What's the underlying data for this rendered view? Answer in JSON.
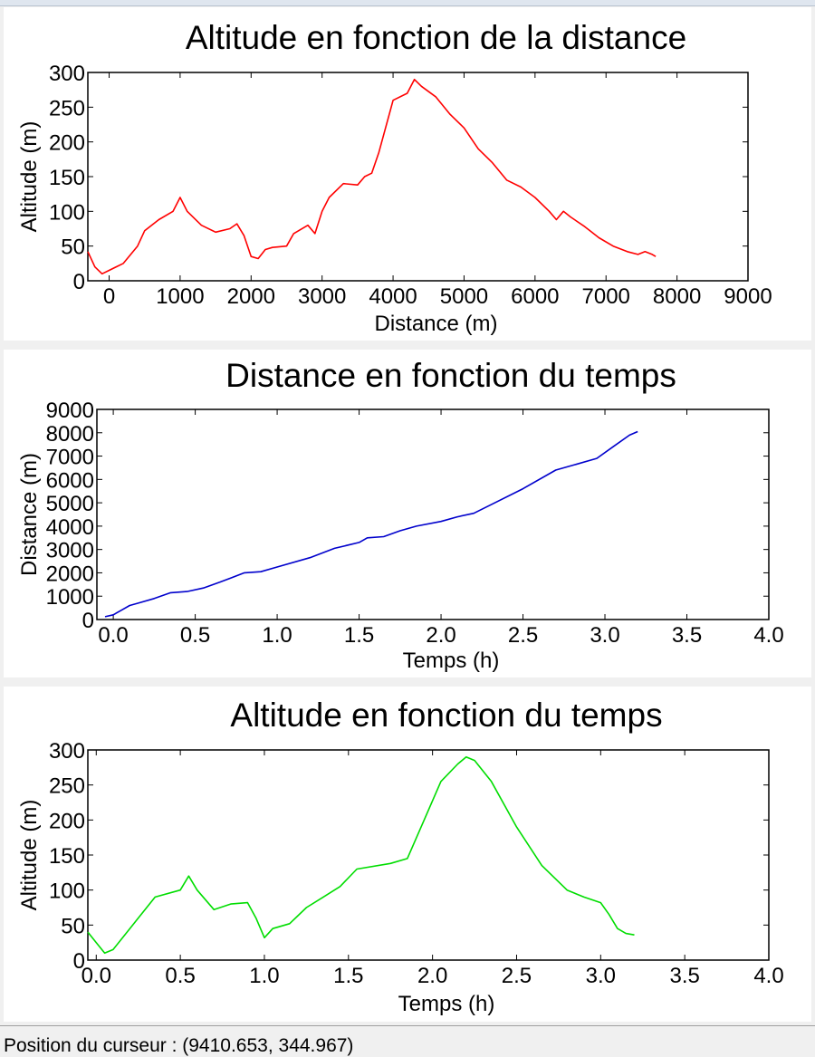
{
  "status_bar": {
    "cursor_text": "Position du curseur : (9410.653, 344.967)"
  },
  "chart_data": [
    {
      "type": "line",
      "title": "Altitude en fonction de la distance",
      "xlabel": "Distance (m)",
      "ylabel": "Altitude (m)",
      "xlim": [
        -300,
        9000
      ],
      "ylim": [
        0,
        300
      ],
      "xticks": [
        "0",
        "1000",
        "2000",
        "3000",
        "4000",
        "5000",
        "6000",
        "7000",
        "8000",
        "9000"
      ],
      "yticks": [
        "0",
        "50",
        "100",
        "150",
        "200",
        "250",
        "300"
      ],
      "color": "#ff0000",
      "series": [
        {
          "x": [
            -300,
            -200,
            -100,
            0,
            200,
            400,
            500,
            700,
            900,
            1000,
            1100,
            1300,
            1500,
            1700,
            1800,
            1900,
            2000,
            2100,
            2200,
            2300,
            2500,
            2600,
            2800,
            2900,
            3000,
            3100,
            3300,
            3500,
            3600,
            3700,
            3800,
            4000,
            4200,
            4300,
            4400,
            4600,
            4800,
            5000,
            5200,
            5400,
            5600,
            5800,
            6000,
            6200,
            6300,
            6400,
            6500,
            6700,
            6900,
            7100,
            7300,
            7450,
            7550,
            7650,
            7700
          ],
          "y": [
            42,
            20,
            10,
            15,
            25,
            50,
            72,
            88,
            100,
            120,
            100,
            80,
            70,
            75,
            82,
            65,
            35,
            32,
            45,
            48,
            50,
            68,
            80,
            68,
            100,
            120,
            140,
            138,
            150,
            155,
            185,
            260,
            270,
            290,
            280,
            265,
            240,
            220,
            190,
            170,
            145,
            135,
            120,
            100,
            88,
            100,
            92,
            78,
            62,
            50,
            42,
            38,
            42,
            38,
            35
          ]
        }
      ]
    },
    {
      "type": "line",
      "title": "Distance en fonction du temps",
      "xlabel": "Temps (h)",
      "ylabel": "Distance (m)",
      "xlim": [
        -0.1,
        4.0
      ],
      "ylim": [
        0,
        9000
      ],
      "xticks": [
        "0.0",
        "0.5",
        "1.0",
        "1.5",
        "2.0",
        "2.5",
        "3.0",
        "3.5",
        "4.0"
      ],
      "yticks": [
        "0",
        "1000",
        "2000",
        "3000",
        "4000",
        "5000",
        "6000",
        "7000",
        "8000",
        "9000"
      ],
      "color": "#0000cc",
      "series": [
        {
          "x": [
            -0.05,
            0.0,
            0.05,
            0.1,
            0.15,
            0.25,
            0.35,
            0.45,
            0.55,
            0.65,
            0.8,
            0.9,
            1.0,
            1.2,
            1.35,
            1.5,
            1.55,
            1.65,
            1.75,
            1.85,
            2.0,
            2.1,
            2.2,
            2.3,
            2.5,
            2.7,
            2.8,
            2.95,
            3.05,
            3.15,
            3.2
          ],
          "y": [
            120,
            200,
            400,
            600,
            700,
            900,
            1150,
            1200,
            1350,
            1600,
            2000,
            2050,
            2250,
            2650,
            3050,
            3300,
            3500,
            3550,
            3800,
            4000,
            4200,
            4400,
            4550,
            4900,
            5600,
            6400,
            6600,
            6900,
            7400,
            7900,
            8050
          ]
        }
      ]
    },
    {
      "type": "line",
      "title": "Altitude en fonction du temps",
      "xlabel": "Temps (h)",
      "ylabel": "Altitude (m)",
      "xlim": [
        -0.05,
        4.0
      ],
      "ylim": [
        0,
        300
      ],
      "xticks": [
        "0.0",
        "0.5",
        "1.0",
        "1.5",
        "2.0",
        "2.5",
        "3.0",
        "3.5",
        "4.0"
      ],
      "yticks": [
        "0",
        "50",
        "100",
        "150",
        "200",
        "250",
        "300"
      ],
      "color": "#00dd00",
      "series": [
        {
          "x": [
            -0.05,
            0.0,
            0.05,
            0.1,
            0.2,
            0.35,
            0.5,
            0.55,
            0.6,
            0.7,
            0.8,
            0.9,
            0.95,
            1.0,
            1.05,
            1.15,
            1.25,
            1.35,
            1.45,
            1.55,
            1.75,
            1.85,
            1.95,
            2.05,
            2.15,
            2.2,
            2.25,
            2.35,
            2.5,
            2.65,
            2.8,
            2.9,
            3.0,
            3.05,
            3.1,
            3.15,
            3.2
          ],
          "y": [
            40,
            25,
            10,
            15,
            45,
            90,
            100,
            120,
            100,
            72,
            80,
            82,
            60,
            32,
            45,
            52,
            75,
            90,
            105,
            130,
            138,
            145,
            200,
            255,
            280,
            290,
            285,
            255,
            190,
            135,
            100,
            90,
            82,
            65,
            45,
            38,
            36
          ]
        }
      ]
    }
  ]
}
